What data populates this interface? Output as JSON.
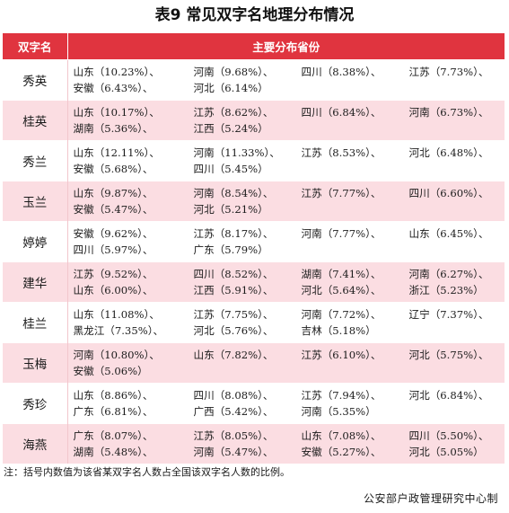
{
  "title": "表9  常见双字名地理分布情况",
  "table": {
    "headers": [
      "双字名",
      "主要分布省份"
    ],
    "rows": [
      {
        "name": "秀英",
        "lines": [
          [
            "山东（10.23%）、",
            "河南（9.68%）、",
            "四川（8.38%）、",
            "江苏（7.73%）、"
          ],
          [
            "安徽（6.43%）、",
            "河北（6.14%）"
          ]
        ]
      },
      {
        "name": "桂英",
        "lines": [
          [
            "山东（10.17%）、",
            "江苏（8.62%）、",
            "四川（6.84%）、",
            "河南（6.73%）、"
          ],
          [
            "湖南（5.36%）、",
            "江西（5.24%）"
          ]
        ]
      },
      {
        "name": "秀兰",
        "lines": [
          [
            "山东（12.11%）、",
            "河南（11.33%）、",
            "江苏（8.53%）、",
            "河北（6.48%）、"
          ],
          [
            "安徽（5.68%）、",
            "四川（5.45%）"
          ]
        ]
      },
      {
        "name": "玉兰",
        "lines": [
          [
            "山东（9.87%）、",
            "河南（8.54%）、",
            "江苏（7.77%）、",
            "四川（6.60%）、"
          ],
          [
            "安徽（5.47%）、",
            "河北（5.21%）"
          ]
        ]
      },
      {
        "name": "婷婷",
        "lines": [
          [
            "安徽（9.62%）、",
            "江苏（8.17%）、",
            "河南（7.77%）、",
            "山东（6.45%）、"
          ],
          [
            "四川（5.97%）、",
            "广东（5.79%）"
          ]
        ]
      },
      {
        "name": "建华",
        "lines": [
          [
            "江苏（9.52%）、",
            "四川（8.52%）、",
            "湖南（7.41%）、",
            "河南（6.27%）、"
          ],
          [
            "山东（6.00%）、",
            "江西（5.91%）、",
            "河北（5.64%）、",
            "浙江（5.23%）"
          ]
        ]
      },
      {
        "name": "桂兰",
        "lines": [
          [
            "山东（11.08%）、",
            "江苏（7.75%）、",
            "河南（7.72%）、",
            "辽宁（7.37%）、"
          ],
          [
            "黑龙江（7.35%）、",
            "河北（5.76%）、",
            "吉林（5.18%）"
          ]
        ]
      },
      {
        "name": "玉梅",
        "lines": [
          [
            "河南（10.80%）、",
            "山东（7.82%）、",
            "江苏（6.10%）、",
            "河北（5.75%）、"
          ],
          [
            "安徽（5.06%）"
          ]
        ]
      },
      {
        "name": "秀珍",
        "lines": [
          [
            "山东（8.86%）、",
            "四川（8.08%）、",
            "江苏（7.94%）、",
            "河北（6.84%）、"
          ],
          [
            "广东（6.81%）、",
            "广西（5.42%）、",
            "河南（5.35%）"
          ]
        ]
      },
      {
        "name": "海燕",
        "lines": [
          [
            "广东（8.07%）、",
            "江苏（8.05%）、",
            "山东（7.08%）、",
            "四川（5.50%）、"
          ],
          [
            "湖南（5.48%）、",
            "河南（5.47%）、",
            "安徽（5.27%）、",
            "河北（5.05%）"
          ]
        ]
      }
    ]
  },
  "note": "注：括号内数值为该省某双字名人数占全国该双字名人数的比例。",
  "source": "公安部户政管理研究中心制"
}
